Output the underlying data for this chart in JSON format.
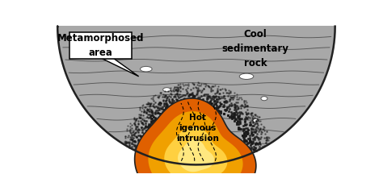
{
  "bg_color": "#ffffff",
  "rock_color": "#a8a8a8",
  "rock_dark_color": "#888888",
  "rock_line_color": "#555555",
  "halftone_color": "#1a1a1a",
  "intrusion_orange": "#e06000",
  "intrusion_yellow": "#f0a000",
  "intrusion_light": "#ffd040",
  "intrusion_bright": "#ffe880",
  "outline_color": "#222222",
  "label_cool": "Cool\nsedimentary\nrock",
  "label_meta": "Metamorphosed\narea",
  "label_hot": "Hot\nigenous\nintrusion"
}
